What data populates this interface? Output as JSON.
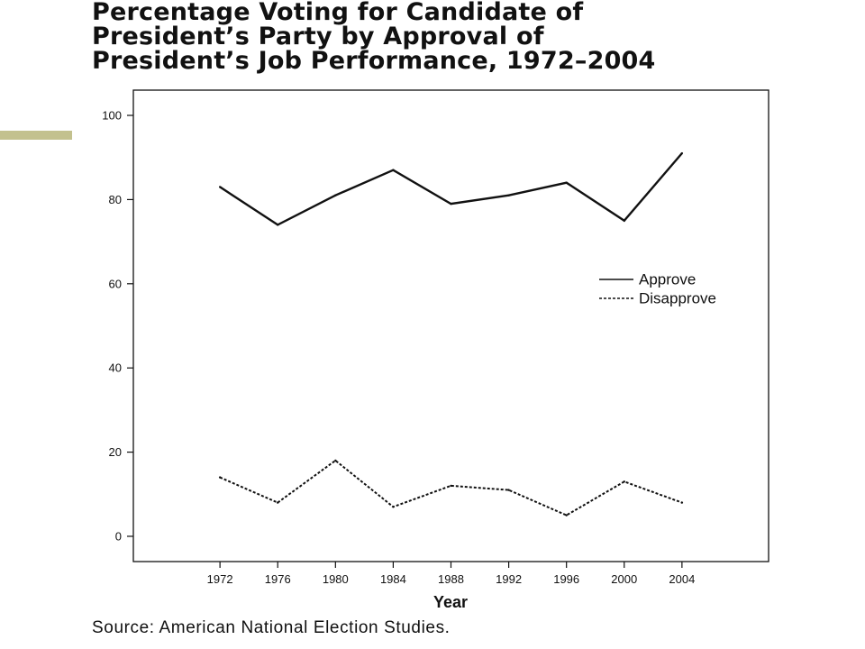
{
  "title_lines": [
    "Percentage Voting for Candidate of",
    "President’s Party by Approval of",
    "President’s Job Performance, 1972–2004"
  ],
  "source": "Source: American National Election Studies.",
  "colors": {
    "accent": "#c3c18e",
    "ink": "#111111"
  },
  "chart_data": {
    "type": "line",
    "title": "Percentage Voting for Candidate of President’s Party by Approval of President’s Job Performance, 1972–2004",
    "xlabel": "Year",
    "ylabel": "",
    "x": [
      1972,
      1976,
      1980,
      1984,
      1988,
      1992,
      1996,
      2000,
      2004
    ],
    "x_tick_labels": [
      "1972",
      "1976",
      "1980",
      "1984",
      "1988",
      "1992",
      "1996",
      "2000",
      "2004"
    ],
    "y_ticks": [
      0,
      20,
      40,
      60,
      80,
      100
    ],
    "xlim": [
      1966,
      2010
    ],
    "ylim": [
      -6,
      106
    ],
    "grid": false,
    "legend_position": "right",
    "series": [
      {
        "name": "Approve",
        "line_style": "solid",
        "values": [
          83,
          74,
          81,
          87,
          79,
          81,
          84,
          75,
          91
        ]
      },
      {
        "name": "Disapprove",
        "line_style": "dashed",
        "values": [
          14,
          8,
          18,
          7,
          12,
          11,
          5,
          13,
          8
        ]
      }
    ]
  }
}
